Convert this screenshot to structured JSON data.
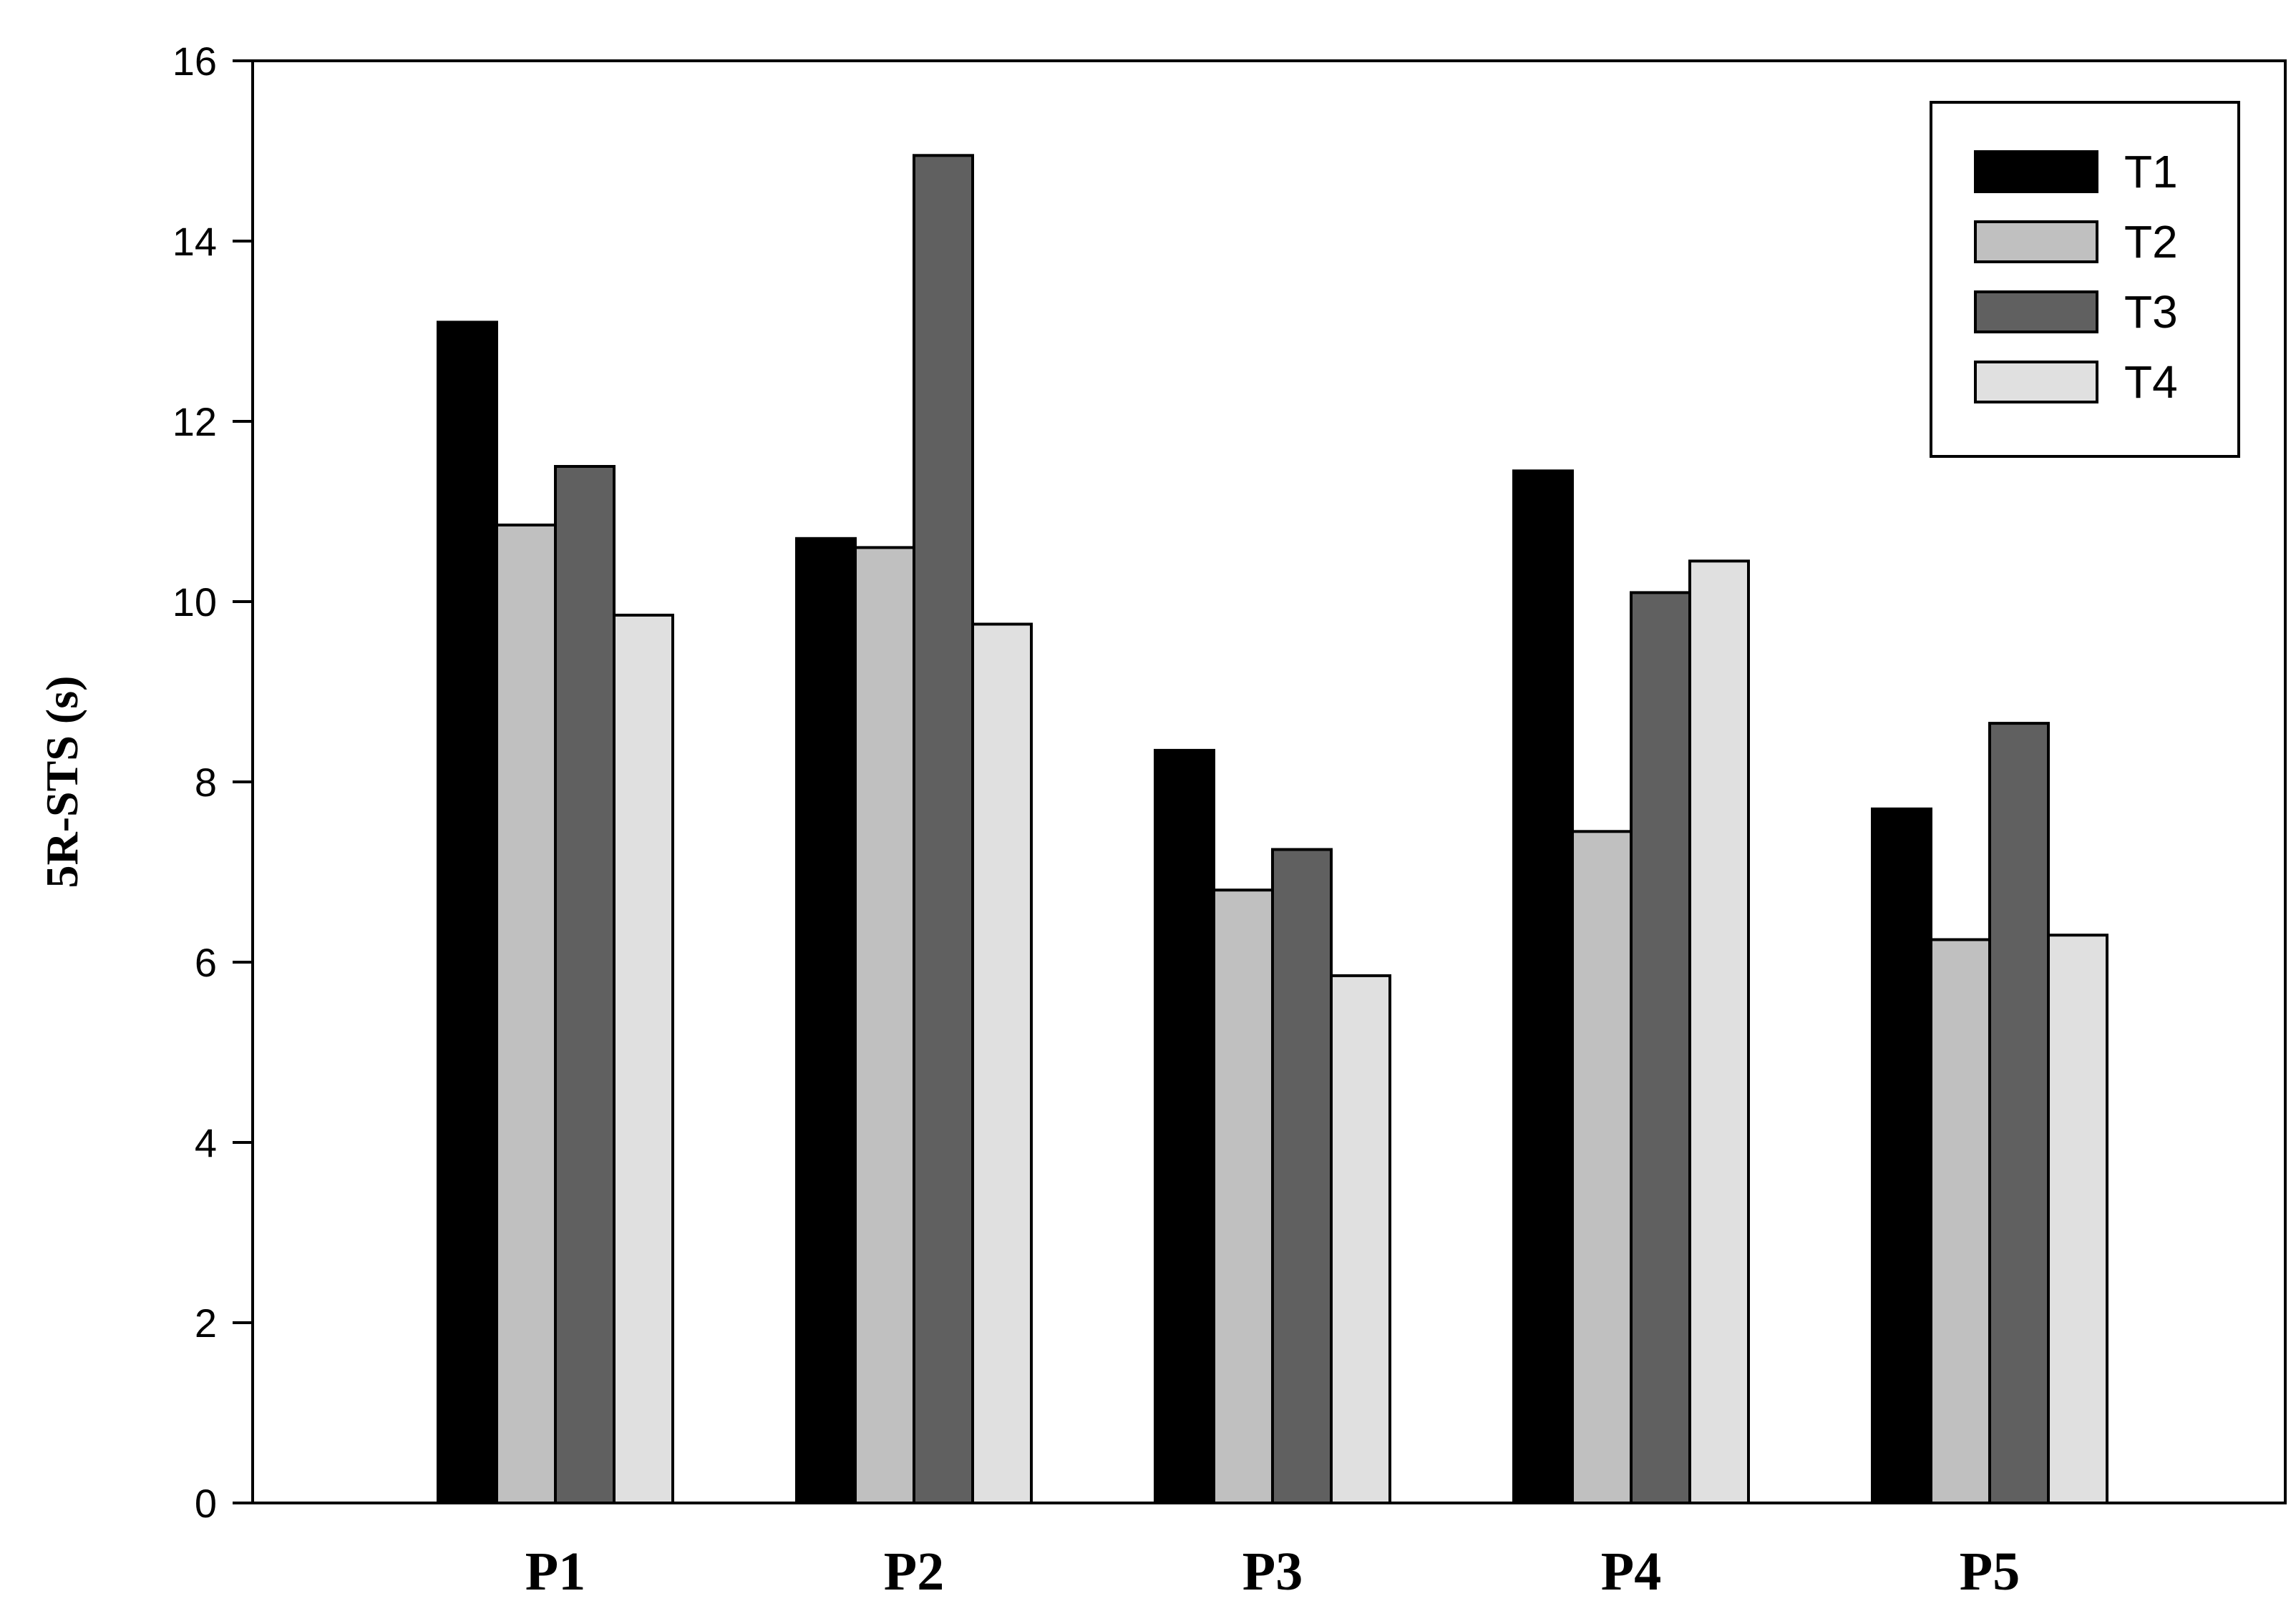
{
  "chart_data": {
    "type": "bar",
    "title": "",
    "xlabel": "",
    "ylabel": "5R-STS (s)",
    "categories": [
      "P1",
      "P2",
      "P3",
      "P4",
      "P5"
    ],
    "ylim": [
      0,
      16
    ],
    "yticks": [
      "0",
      "2",
      "4",
      "6",
      "8",
      "10",
      "12",
      "14",
      "16"
    ],
    "grid": false,
    "legend_position": "top-right",
    "series": [
      {
        "name": "T1",
        "color": "#000000",
        "values": [
          13.1,
          10.7,
          8.35,
          11.45,
          7.7
        ]
      },
      {
        "name": "T2",
        "color": "#c0c0c0",
        "values": [
          10.85,
          10.6,
          6.8,
          7.45,
          6.25
        ]
      },
      {
        "name": "T3",
        "color": "#606060",
        "values": [
          11.5,
          14.95,
          7.25,
          10.1,
          8.65
        ]
      },
      {
        "name": "T4",
        "color": "#e0e0e0",
        "values": [
          9.85,
          9.75,
          5.85,
          10.45,
          6.3
        ]
      }
    ]
  }
}
